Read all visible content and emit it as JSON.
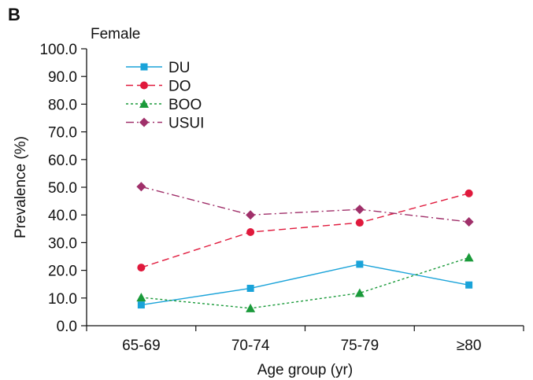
{
  "panel_label": "B",
  "subtitle": "Female",
  "chart_data": {
    "type": "line",
    "title": "Female",
    "xlabel": "Age group (yr)",
    "ylabel": "Prevalence (%)",
    "categories": [
      "65-69",
      "70-74",
      "75-79",
      "≥80"
    ],
    "ylim": [
      0,
      100
    ],
    "yticks": [
      "0.0",
      "10.0",
      "20.0",
      "30.0",
      "40.0",
      "50.0",
      "60.0",
      "70.0",
      "80.0",
      "90.0",
      "100.0"
    ],
    "grid": false,
    "legend_position": "top-left",
    "series": [
      {
        "name": "DU",
        "values": [
          7.5,
          13.5,
          22.2,
          14.7
        ],
        "color": "#1aa3d9",
        "marker": "square",
        "dash": ""
      },
      {
        "name": "DO",
        "values": [
          21.0,
          33.8,
          37.2,
          47.8
        ],
        "color": "#e0193c",
        "marker": "circle",
        "dash": "9,5"
      },
      {
        "name": "BOO",
        "values": [
          10.2,
          6.3,
          11.8,
          24.6
        ],
        "color": "#1a9a3a",
        "marker": "triangle",
        "dash": "3,3"
      },
      {
        "name": "USUI",
        "values": [
          50.2,
          40.0,
          42.0,
          37.5
        ],
        "color": "#a0306a",
        "marker": "diamond",
        "dash": "10,4,2,4"
      }
    ]
  }
}
